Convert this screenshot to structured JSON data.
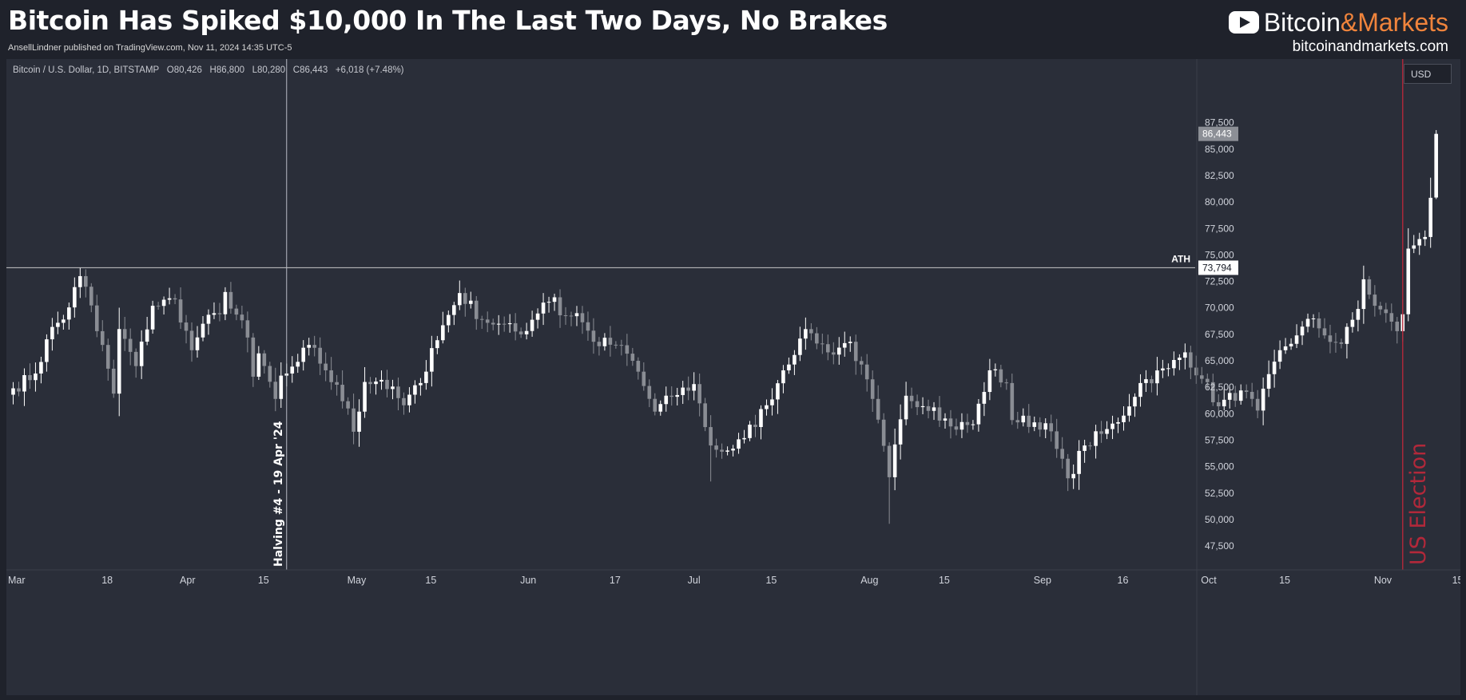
{
  "header": {
    "title": "Bitcoin Has Spiked $10,000 In The Last Two Days, No Brakes",
    "byline": "AnsellLindner published on TradingView.com, Nov 11, 2024 14:35 UTC-5",
    "brand_a": "Bitcoin",
    "brand_b": "&Markets",
    "site": "bitcoinandmarkets.com",
    "brand_icon": "youtube-play-icon"
  },
  "legend": {
    "symbol": "Bitcoin / U.S. Dollar, 1D, BITSTAMP",
    "open": "O80,426",
    "high": "H86,800",
    "low": "L80,280",
    "close": "C86,443",
    "change": "+6,018 (+7.48%)"
  },
  "currency": "USD",
  "colors": {
    "up": "#ffffff",
    "down": "#8a8d94",
    "background": "#2a2e39",
    "election": "#b2283a",
    "ath_line": "#c8c8c8"
  },
  "chart_data": {
    "type": "candlestick",
    "timeframe": "1D",
    "start_date": "2024-03-01",
    "ylim": [
      46000,
      92000
    ],
    "y_ticks": [
      47500,
      50000,
      52500,
      55000,
      57500,
      60000,
      62500,
      65000,
      67500,
      70000,
      72500,
      75000,
      77500,
      80000,
      82500,
      85000,
      87500
    ],
    "y_tick_labels": [
      "47,500",
      "50,000",
      "52,500",
      "55,000",
      "57,500",
      "60,000",
      "62,500",
      "65,000",
      "67,500",
      "70,000",
      "72,500",
      "75,000",
      "77,500",
      "80,000",
      "82,500",
      "85,000",
      "87,500"
    ],
    "x_tick_labels": [
      {
        "date": "2024-03-01",
        "label": "Mar"
      },
      {
        "date": "2024-03-18",
        "label": "18"
      },
      {
        "date": "2024-04-01",
        "label": "Apr"
      },
      {
        "date": "2024-04-15",
        "label": "15"
      },
      {
        "date": "2024-05-01",
        "label": "May"
      },
      {
        "date": "2024-05-15",
        "label": "15"
      },
      {
        "date": "2024-06-01",
        "label": "Jun"
      },
      {
        "date": "2024-06-17",
        "label": "17"
      },
      {
        "date": "2024-07-01",
        "label": "Jul"
      },
      {
        "date": "2024-07-15",
        "label": "15"
      },
      {
        "date": "2024-08-01",
        "label": "Aug"
      },
      {
        "date": "2024-08-15",
        "label": "15"
      },
      {
        "date": "2024-09-01",
        "label": "Sep"
      },
      {
        "date": "2024-09-16",
        "label": "16"
      },
      {
        "date": "2024-10-01",
        "label": "Oct"
      },
      {
        "date": "2024-10-15",
        "label": "15"
      },
      {
        "date": "2024-11-01",
        "label": "Nov"
      },
      {
        "date": "2024-11-15",
        "label": "15"
      }
    ],
    "close_checkpoints": [
      [
        "2024-03-01",
        62400
      ],
      [
        "2024-03-05",
        63800
      ],
      [
        "2024-03-08",
        68200
      ],
      [
        "2024-03-10",
        68900
      ],
      [
        "2024-03-13",
        73000
      ],
      [
        "2024-03-14",
        72000
      ],
      [
        "2024-03-16",
        67800
      ],
      [
        "2024-03-17",
        66500
      ],
      [
        "2024-03-19",
        61900
      ],
      [
        "2024-03-20",
        68000
      ],
      [
        "2024-03-23",
        64500
      ],
      [
        "2024-03-26",
        70200
      ],
      [
        "2024-03-30",
        70800
      ],
      [
        "2024-04-02",
        66000
      ],
      [
        "2024-04-04",
        68500
      ],
      [
        "2024-04-07",
        69400
      ],
      [
        "2024-04-08",
        71500
      ],
      [
        "2024-04-12",
        67200
      ],
      [
        "2024-04-13",
        63500
      ],
      [
        "2024-04-14",
        65700
      ],
      [
        "2024-04-17",
        61400
      ],
      [
        "2024-04-18",
        63600
      ],
      [
        "2024-04-19",
        63800
      ],
      [
        "2024-04-21",
        64900
      ],
      [
        "2024-04-23",
        66500
      ],
      [
        "2024-04-26",
        64100
      ],
      [
        "2024-04-30",
        60500
      ],
      [
        "2024-05-01",
        58300
      ],
      [
        "2024-05-03",
        63000
      ],
      [
        "2024-05-06",
        63200
      ],
      [
        "2024-05-10",
        60800
      ],
      [
        "2024-05-13",
        62900
      ],
      [
        "2024-05-15",
        66200
      ],
      [
        "2024-05-20",
        71400
      ],
      [
        "2024-05-24",
        68900
      ],
      [
        "2024-05-27",
        68500
      ],
      [
        "2024-05-31",
        67500
      ],
      [
        "2024-06-04",
        70500
      ],
      [
        "2024-06-06",
        71000
      ],
      [
        "2024-06-07",
        69300
      ],
      [
        "2024-06-10",
        69500
      ],
      [
        "2024-06-13",
        66800
      ],
      [
        "2024-06-17",
        66500
      ],
      [
        "2024-06-20",
        65000
      ],
      [
        "2024-06-24",
        60200
      ],
      [
        "2024-06-27",
        61600
      ],
      [
        "2024-07-01",
        62800
      ],
      [
        "2024-07-04",
        57000
      ],
      [
        "2024-07-05",
        56600
      ],
      [
        "2024-07-08",
        56700
      ],
      [
        "2024-07-10",
        57700
      ],
      [
        "2024-07-14",
        60800
      ],
      [
        "2024-07-17",
        64100
      ],
      [
        "2024-07-20",
        67100
      ],
      [
        "2024-07-22",
        67600
      ],
      [
        "2024-07-25",
        65800
      ],
      [
        "2024-07-29",
        66800
      ],
      [
        "2024-08-02",
        61400
      ],
      [
        "2024-08-05",
        54000
      ],
      [
        "2024-08-08",
        61700
      ],
      [
        "2024-08-13",
        60600
      ],
      [
        "2024-08-16",
        58800
      ],
      [
        "2024-08-20",
        59000
      ],
      [
        "2024-08-23",
        64100
      ],
      [
        "2024-08-26",
        62900
      ],
      [
        "2024-08-27",
        59400
      ],
      [
        "2024-09-02",
        59100
      ],
      [
        "2024-09-06",
        53900
      ],
      [
        "2024-09-09",
        57000
      ],
      [
        "2024-09-12",
        58100
      ],
      [
        "2024-09-15",
        59200
      ],
      [
        "2024-09-19",
        62900
      ],
      [
        "2024-09-24",
        64300
      ],
      [
        "2024-09-27",
        65800
      ],
      [
        "2024-09-30",
        63300
      ],
      [
        "2024-10-03",
        60700
      ],
      [
        "2024-10-07",
        62200
      ],
      [
        "2024-10-10",
        60300
      ],
      [
        "2024-10-14",
        66000
      ],
      [
        "2024-10-17",
        67400
      ],
      [
        "2024-10-20",
        69000
      ],
      [
        "2024-10-22",
        67400
      ],
      [
        "2024-10-25",
        66600
      ],
      [
        "2024-10-28",
        69900
      ],
      [
        "2024-10-29",
        72700
      ],
      [
        "2024-10-31",
        70200
      ],
      [
        "2024-11-03",
        68700
      ],
      [
        "2024-11-04",
        67800
      ],
      [
        "2024-11-05",
        69400
      ],
      [
        "2024-11-06",
        75600
      ],
      [
        "2024-11-07",
        75900
      ],
      [
        "2024-11-08",
        76500
      ],
      [
        "2024-11-09",
        76700
      ],
      [
        "2024-11-10",
        80400
      ],
      [
        "2024-11-11",
        86443
      ]
    ],
    "last_candle": {
      "date": "2024-11-11",
      "open": 80426,
      "high": 86800,
      "low": 80280,
      "close": 86443
    },
    "price_label": "86,443",
    "hlines": [
      {
        "value": 73794,
        "label": "ATH",
        "price_label": "73,794"
      }
    ],
    "vlines": [
      {
        "date": "2024-04-19",
        "label": "Halving #4 - 19 Apr '24"
      },
      {
        "date": "2024-11-05",
        "label": "US Election"
      }
    ]
  }
}
